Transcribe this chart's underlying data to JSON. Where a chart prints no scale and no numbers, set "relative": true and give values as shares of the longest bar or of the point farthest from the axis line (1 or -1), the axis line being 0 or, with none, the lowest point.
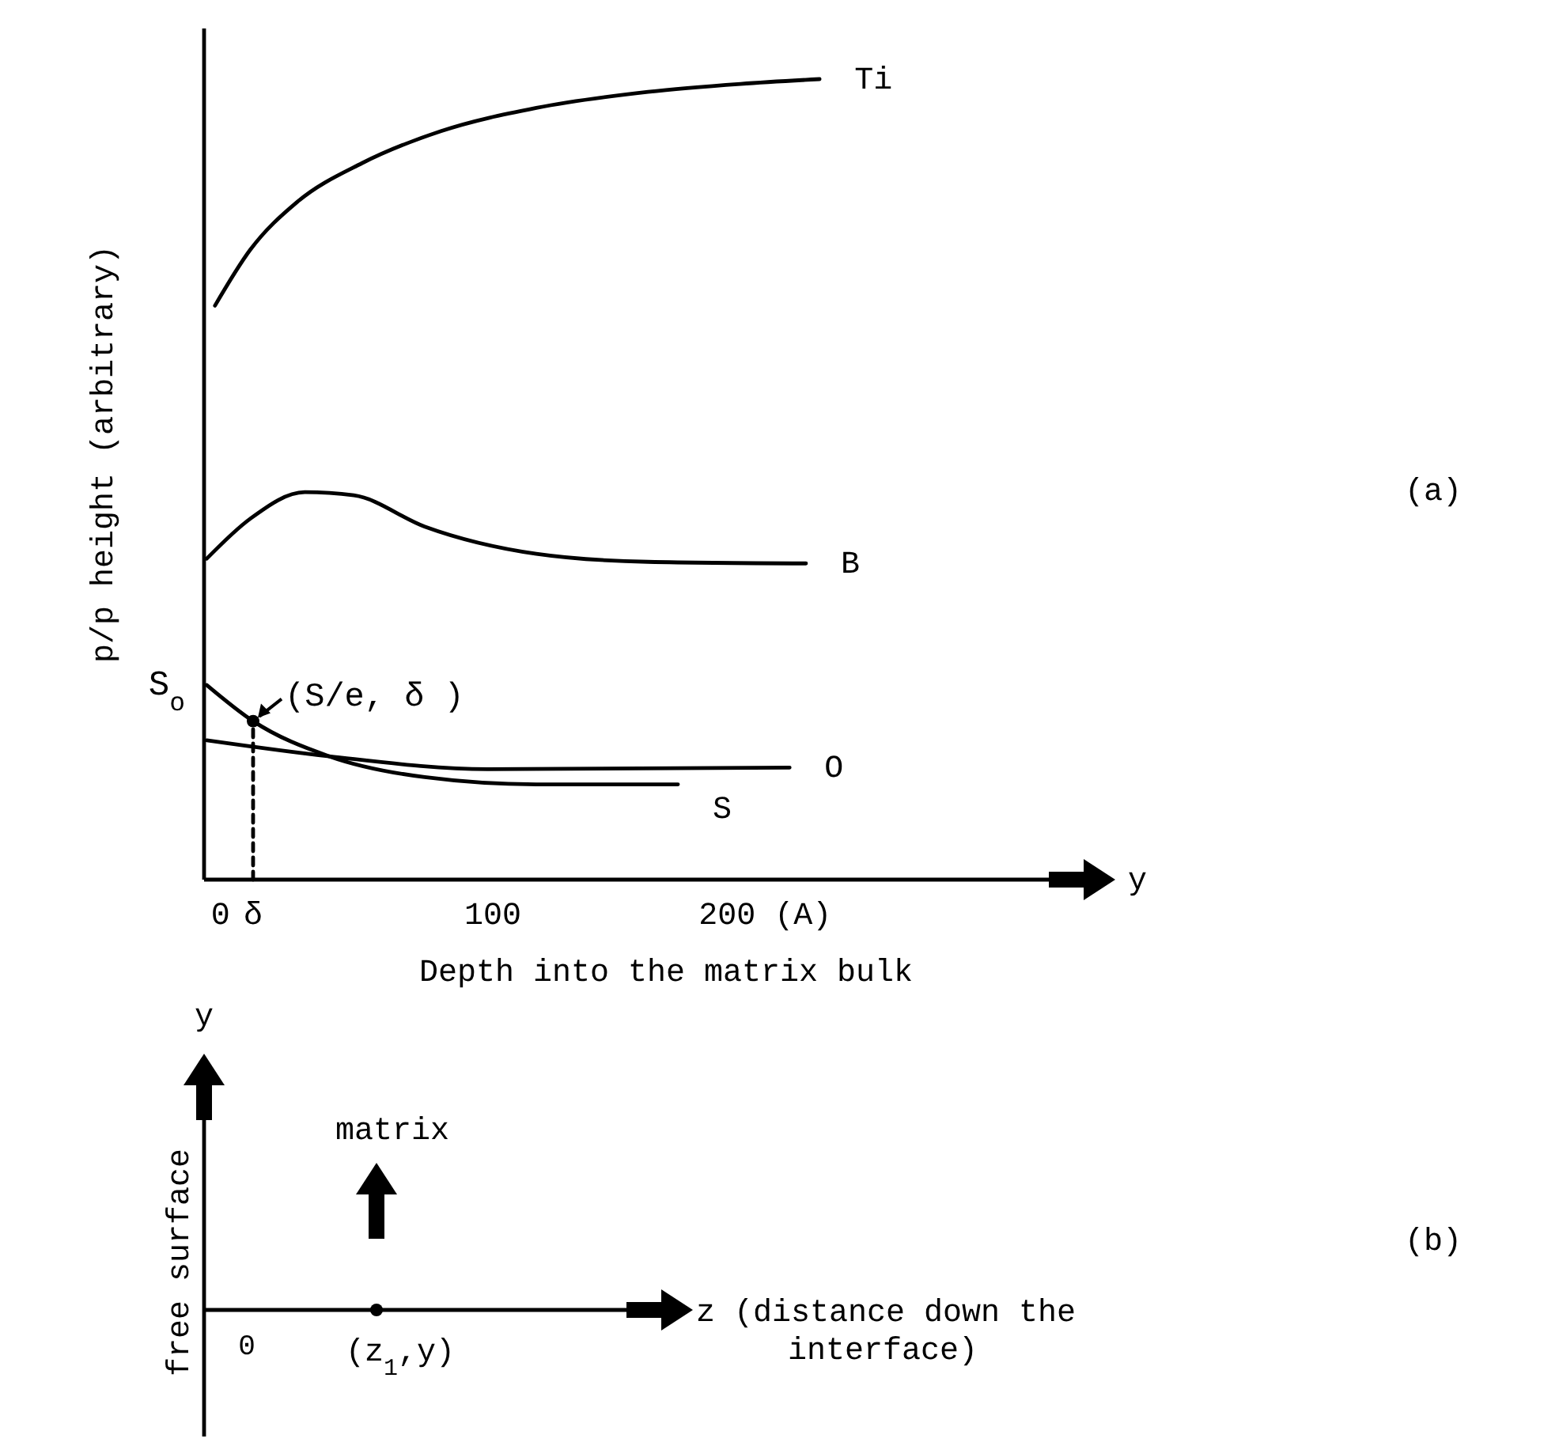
{
  "chart_data": [
    {
      "type": "line",
      "relative": true,
      "xlabel": "Depth into the matrix bulk",
      "ylabel": "p/p height (arbitrary)",
      "xlim": [
        -6,
        310
      ],
      "xticks": [
        {
          "value": 0,
          "label": "0"
        },
        {
          "value": 12,
          "label": "δ"
        },
        100,
        {
          "value": 200,
          "label": "200 (A)"
        }
      ],
      "tick_labels": "x",
      "grid": false,
      "legend": false,
      "marker": "none",
      "line_style": "solid",
      "annotations": [
        {
          "text": "S$_{o}$",
          "x": -5,
          "y": 0.243
        },
        {
          "text": "(S/e, δ )",
          "x": 12,
          "y": 0.198
        },
        "y",
        "(a)"
      ],
      "series": [
        {
          "name": "Ti",
          "color": "#000000",
          "x": [
            -2,
            11,
            28,
            52,
            81,
            116,
            157,
            191,
            220
          ],
          "values": [
            0.717,
            0.787,
            0.846,
            0.895,
            0.935,
            0.964,
            0.984,
            0.994,
            1.0
          ]
        },
        {
          "name": "B",
          "color": "#000000",
          "x": [
            -5,
            11,
            31,
            49,
            75,
            116,
            157,
            215
          ],
          "values": [
            0.401,
            0.451,
            0.484,
            0.48,
            0.441,
            0.407,
            0.397,
            0.395
          ]
        },
        {
          "name": "S",
          "color": "#000000",
          "x": [
            -5,
            12,
            40,
            75,
            116,
            168
          ],
          "values": [
            0.243,
            0.198,
            0.154,
            0.128,
            0.119,
            0.119
          ]
        },
        {
          "name": "O",
          "color": "#000000",
          "x": [
            -5,
            40,
            98,
            209
          ],
          "values": [
            0.174,
            0.154,
            0.138,
            0.14
          ]
        },
        {
          "type": "line",
          "color": "#000000",
          "line_style": "dashed",
          "x": [
            12,
            12
          ],
          "values": [
            0,
            0.198
          ]
        },
        {
          "type": "scatter",
          "color": "#000000",
          "marker": "circle",
          "x": [
            12
          ],
          "values": [
            0.198
          ]
        }
      ]
    },
    {
      "type": "other",
      "annotations": [
        "y",
        "free surface",
        "matrix",
        "0",
        "(z$_{1}$,y)",
        "z (distance down the interface)",
        "(b)"
      ]
    }
  ]
}
